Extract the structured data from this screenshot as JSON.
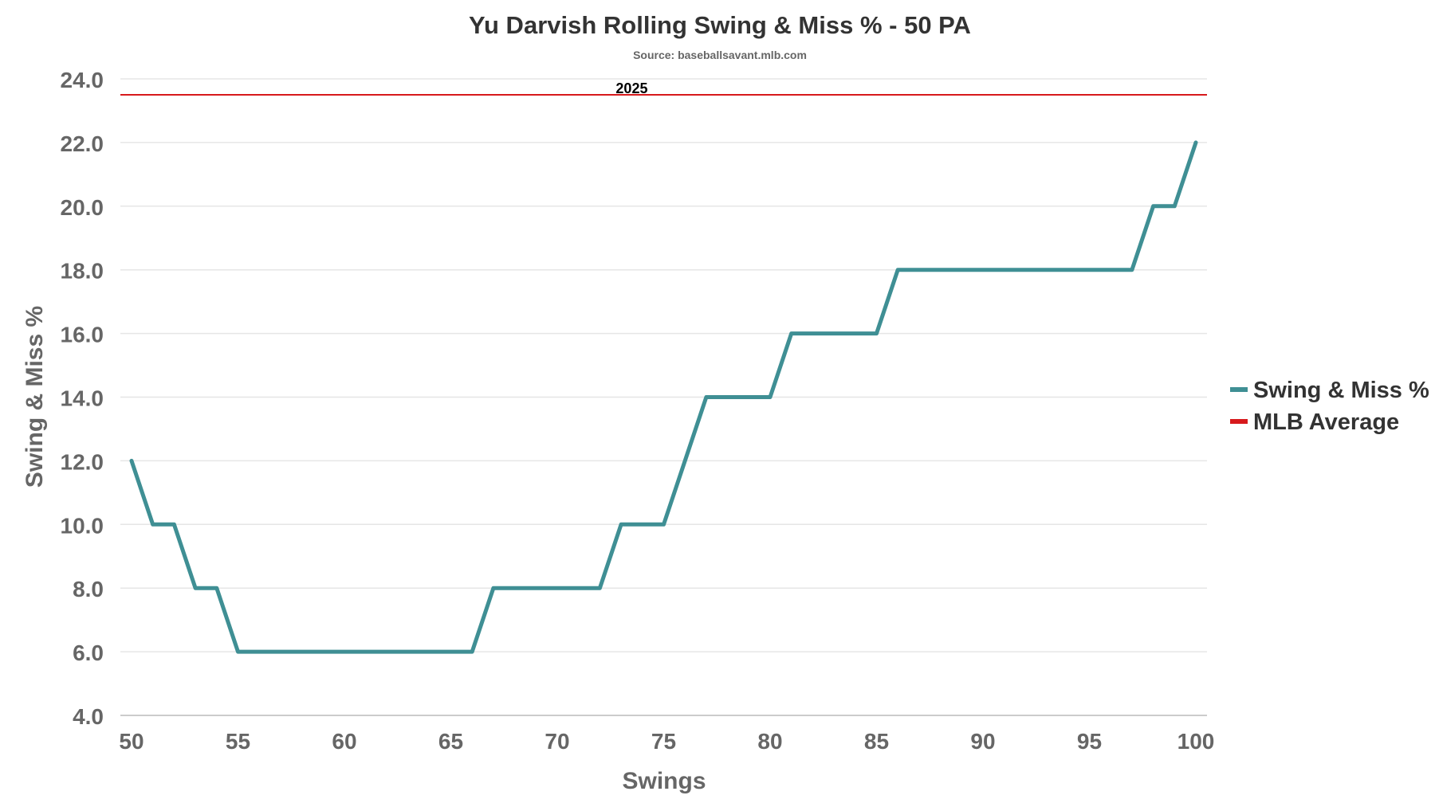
{
  "chart_data": {
    "type": "line",
    "title": "Yu Darvish Rolling Swing & Miss % - 50 PA",
    "subtitle": "Source: baseballsavant.mlb.com",
    "xlabel": "Swings",
    "ylabel": "Swing & Miss %",
    "xlim": [
      50,
      100
    ],
    "ylim": [
      4,
      24
    ],
    "xticks": [
      "50",
      "55",
      "60",
      "65",
      "70",
      "75",
      "80",
      "85",
      "90",
      "95",
      "100"
    ],
    "yticks": [
      "4.0",
      "6.0",
      "8.0",
      "10.0",
      "12.0",
      "14.0",
      "16.0",
      "18.0",
      "20.0",
      "22.0",
      "24.0"
    ],
    "grid": true,
    "legend_position": "right",
    "series": [
      {
        "name": "Swing & Miss %",
        "color": "#3f8f94",
        "x": [
          50,
          51,
          52,
          53,
          54,
          55,
          56,
          57,
          58,
          59,
          60,
          61,
          62,
          63,
          64,
          65,
          66,
          67,
          68,
          69,
          70,
          71,
          72,
          73,
          74,
          75,
          76,
          77,
          78,
          79,
          80,
          81,
          82,
          83,
          84,
          85,
          86,
          87,
          88,
          89,
          90,
          91,
          92,
          93,
          94,
          95,
          96,
          97,
          98,
          99,
          100
        ],
        "y": [
          12,
          10,
          10,
          8,
          8,
          6,
          6,
          6,
          6,
          6,
          6,
          6,
          6,
          6,
          6,
          6,
          6,
          8,
          8,
          8,
          8,
          8,
          8,
          10,
          10,
          10,
          12,
          14,
          14,
          14,
          14,
          16,
          16,
          16,
          16,
          16,
          18,
          18,
          18,
          18,
          18,
          18,
          18,
          18,
          18,
          18,
          18,
          18,
          20,
          20,
          22
        ]
      },
      {
        "name": "MLB Average",
        "color": "#d7191c",
        "value": 23.5
      }
    ],
    "annotations": [
      {
        "text": "2025",
        "x": 73.5,
        "y": 23.5
      }
    ]
  }
}
